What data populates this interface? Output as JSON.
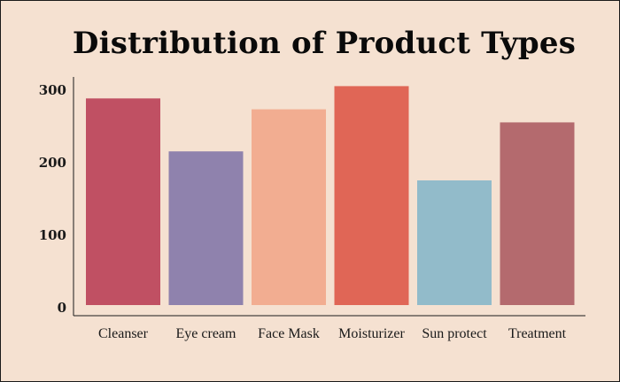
{
  "chart_data": {
    "type": "bar",
    "title": "Distribution of Product Types",
    "xlabel": "",
    "ylabel": "",
    "categories": [
      "Cleanser",
      "Eye cream",
      "Face Mask",
      "Moisturizer",
      "Sun protect",
      "Treatment"
    ],
    "values": [
      285,
      212,
      270,
      302,
      172,
      252
    ],
    "ylim": [
      0,
      310
    ],
    "yticks": [
      0,
      100,
      200,
      300
    ],
    "colors": [
      "#c05063",
      "#8f82ad",
      "#f2ad91",
      "#e06656",
      "#92bbca",
      "#b46a6e"
    ],
    "grid": false,
    "legend": "none"
  }
}
